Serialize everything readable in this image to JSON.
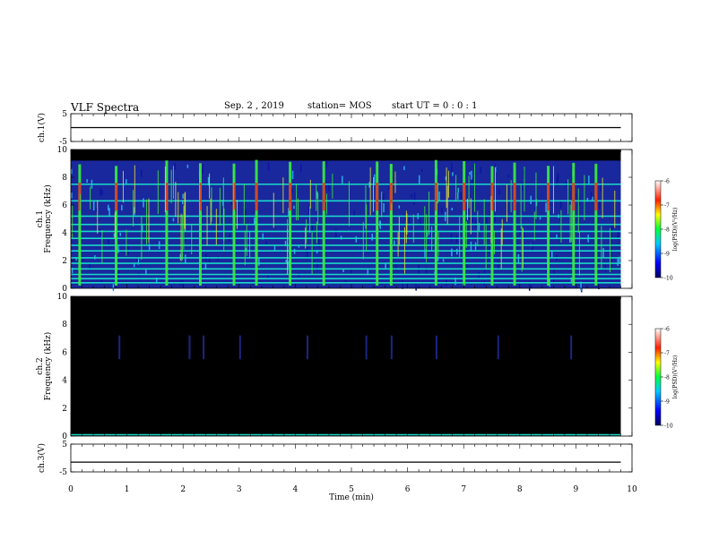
{
  "header": {
    "title": "VLF Spectra",
    "date": "Sep. 2  , 2019",
    "station": "station= MOS",
    "start_ut": "start  UT  =   0  : 0  : 1"
  },
  "chart_data": [
    {
      "type": "line",
      "panel": "ch1-voltage",
      "ylabel": "ch.1(V)",
      "ylim": [
        -5,
        5
      ],
      "yticks": [
        "5",
        "-5"
      ],
      "xlim": [
        0,
        10
      ],
      "series": [
        {
          "x": [
            0,
            9.8
          ],
          "y": [
            0,
            0
          ]
        }
      ]
    },
    {
      "type": "heatmap",
      "panel": "ch1-spectrogram",
      "ylabel": "ch.1\nFrequency (kHz)",
      "ylim": [
        0,
        10
      ],
      "yticks": [
        "0",
        "2",
        "4",
        "6",
        "8",
        "10"
      ],
      "xlim": [
        0,
        10
      ],
      "colorbar": {
        "label": "log(PSD)(V²/Hz)",
        "range": [
          -10,
          -6
        ],
        "ticks": [
          "-6",
          "-7",
          "-8",
          "-9",
          "-10"
        ]
      },
      "band_lines_khz": [
        0.4,
        0.7,
        1.0,
        1.4,
        1.8,
        2.2,
        2.7,
        3.1,
        3.6,
        4.1,
        4.6,
        5.2,
        6.3,
        7.5
      ],
      "burst_times_min": [
        0.15,
        0.8,
        1.7,
        2.3,
        2.9,
        3.3,
        3.9,
        4.5,
        5.45,
        5.7,
        6.5,
        7.0,
        7.5,
        7.9,
        8.5,
        8.95,
        9.35
      ]
    },
    {
      "type": "heatmap",
      "panel": "ch2-spectrogram",
      "ylabel": "ch.2\nFrequency (kHz)",
      "ylim": [
        0,
        10
      ],
      "yticks": [
        "0",
        "2",
        "4",
        "6",
        "8",
        "10"
      ],
      "xlim": [
        0,
        10
      ],
      "colorbar": {
        "label": "log(PSD)(V²/Hz)",
        "range": [
          -10,
          -6
        ],
        "ticks": [
          "-6",
          "-7",
          "-8",
          "-9",
          "-10"
        ]
      },
      "burst_times_min": [
        0.85,
        2.1,
        2.35,
        3.0,
        4.2,
        5.25,
        5.7,
        6.5,
        7.6,
        8.9
      ]
    },
    {
      "type": "line",
      "panel": "ch3-voltage",
      "ylabel": "ch.3(V)",
      "ylim": [
        -5,
        5
      ],
      "yticks": [
        "5",
        "-5"
      ],
      "xlim": [
        0,
        10
      ],
      "xlabel": "Time  (min)",
      "xticks": [
        "0",
        "1",
        "2",
        "3",
        "4",
        "5",
        "6",
        "7",
        "8",
        "9",
        "10"
      ],
      "series": [
        {
          "x": [
            0,
            9.8
          ],
          "y": [
            -1.5,
            -1.5
          ]
        }
      ]
    }
  ],
  "colors": {
    "background": "#000000",
    "band": "#19d8c8",
    "burst_green": "#3cf03c",
    "burst_red": "#e83020",
    "noise_blue": "#1f3bd6"
  }
}
